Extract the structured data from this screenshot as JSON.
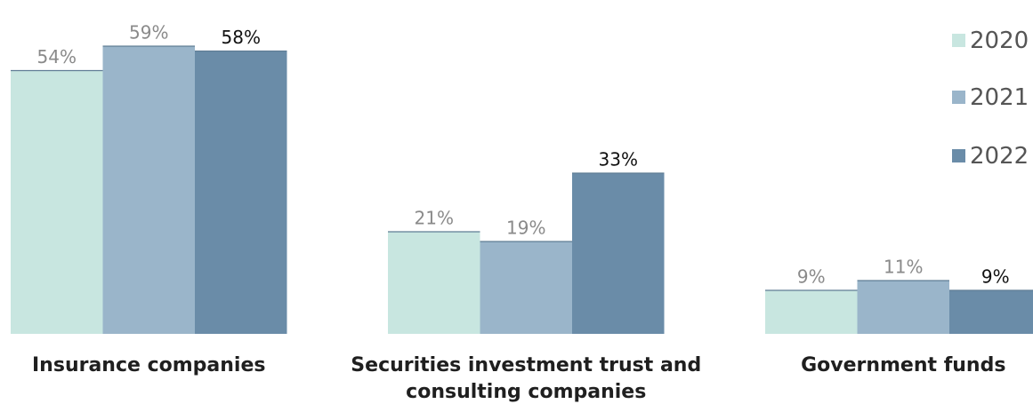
{
  "chart_data": {
    "type": "bar",
    "categories": [
      "Insurance companies",
      "Securities investment trust and consulting companies",
      "Government funds"
    ],
    "category_lines": [
      [
        "Insurance companies"
      ],
      [
        "Securities investment trust and",
        "consulting companies"
      ],
      [
        "Government funds"
      ]
    ],
    "series": [
      {
        "name": "2020",
        "values": [
          54,
          21,
          9
        ],
        "labels": [
          "54%",
          "21%",
          "9%"
        ],
        "color": "#c8e6e0",
        "label_color": "#8a8a8a"
      },
      {
        "name": "2021",
        "values": [
          59,
          19,
          11
        ],
        "labels": [
          "59%",
          "19%",
          "11%"
        ],
        "color": "#9ab5ca",
        "label_color": "#8a8a8a"
      },
      {
        "name": "2022",
        "values": [
          58,
          33,
          9
        ],
        "labels": [
          "58%",
          "33%",
          "9%"
        ],
        "color": "#6a8ca8",
        "label_color": "#111111"
      }
    ],
    "ylim": [
      0,
      60
    ],
    "grid": false,
    "legend_position": "top-right"
  }
}
